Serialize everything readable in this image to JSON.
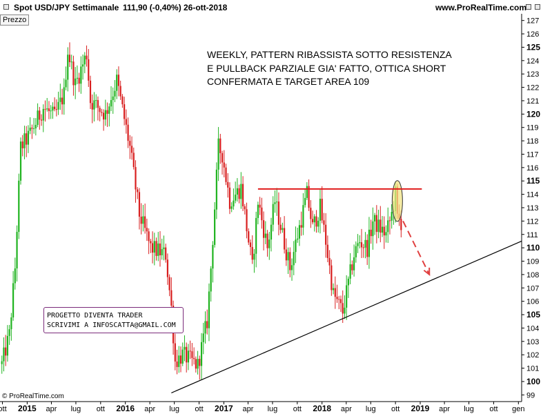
{
  "header": {
    "symbol": "Spot USD/JPY",
    "interval": "Settimanale",
    "price": "111,90 (-0,40%)",
    "date": "26-ott-2018",
    "site": "www.ProRealTime.com"
  },
  "panel_label": "Prezzo",
  "annotation": [
    "WEEKLY, PATTERN RIBASSISTA SOTTO RESISTENZA",
    "E PULLBACK PARZIALE GIA' FATTO, OTTICA SHORT",
    "CONFERMATA E TARGET AREA 109"
  ],
  "promo": [
    "PROGETTO DIVENTA TRADER",
    "SCRIVIMI  A INFOSCATTA@GMAIL.COM"
  ],
  "copyright": "© ProRealTime.com",
  "colors": {
    "up": "#1fb31f",
    "down": "#d81e1e",
    "resistance": "#e01b1b",
    "trendline": "#000000",
    "target_arrow": "#e04040",
    "highlight_fill": "#f2e486",
    "axis": "#000000"
  },
  "chart_data": {
    "type": "candlestick",
    "timeframe": "weekly",
    "y_range": [
      98.5,
      127.5
    ],
    "y_ticks": [
      99,
      100,
      101,
      102,
      103,
      104,
      105,
      106,
      107,
      108,
      109,
      110,
      111,
      112,
      113,
      114,
      115,
      116,
      117,
      118,
      119,
      120,
      121,
      122,
      123,
      124,
      125,
      126,
      127
    ],
    "y_bold_ticks": [
      100,
      105,
      110,
      115,
      120,
      125
    ],
    "x_range": [
      "2014-09-22",
      "2020-01-13"
    ],
    "x_ticks": [
      {
        "label": "ott",
        "date": "2014-10-01",
        "bold": false
      },
      {
        "label": "2015",
        "date": "2015-01-01",
        "bold": true
      },
      {
        "label": "apr",
        "date": "2015-04-01",
        "bold": false
      },
      {
        "label": "lug",
        "date": "2015-07-01",
        "bold": false
      },
      {
        "label": "ott",
        "date": "2015-10-01",
        "bold": false
      },
      {
        "label": "2016",
        "date": "2016-01-01",
        "bold": true
      },
      {
        "label": "apr",
        "date": "2016-04-01",
        "bold": false
      },
      {
        "label": "lug",
        "date": "2016-07-01",
        "bold": false
      },
      {
        "label": "ott",
        "date": "2016-10-01",
        "bold": false
      },
      {
        "label": "2017",
        "date": "2017-01-01",
        "bold": true
      },
      {
        "label": "apr",
        "date": "2017-04-01",
        "bold": false
      },
      {
        "label": "lug",
        "date": "2017-07-01",
        "bold": false
      },
      {
        "label": "ott",
        "date": "2017-10-01",
        "bold": false
      },
      {
        "label": "2018",
        "date": "2018-01-01",
        "bold": true
      },
      {
        "label": "apr",
        "date": "2018-04-01",
        "bold": false
      },
      {
        "label": "lug",
        "date": "2018-07-01",
        "bold": false
      },
      {
        "label": "ott",
        "date": "2018-10-01",
        "bold": false
      },
      {
        "label": "2019",
        "date": "2019-01-01",
        "bold": true
      },
      {
        "label": "apr",
        "date": "2019-04-01",
        "bold": false
      },
      {
        "label": "lug",
        "date": "2019-07-01",
        "bold": false
      },
      {
        "label": "ott",
        "date": "2019-10-01",
        "bold": false
      },
      {
        "label": "gen",
        "date": "2020-01-01",
        "bold": false
      }
    ],
    "close_path": [
      [
        "2014-09-29",
        101.3
      ],
      [
        "2014-10-27",
        103.5
      ],
      [
        "2014-11-17",
        108.5
      ],
      [
        "2014-12-08",
        117.5
      ],
      [
        "2015-01-12",
        118.5
      ],
      [
        "2015-03-02",
        120.5
      ],
      [
        "2015-04-13",
        119.8
      ],
      [
        "2015-05-18",
        121.5
      ],
      [
        "2015-06-01",
        124.8
      ],
      [
        "2015-06-29",
        122.2
      ],
      [
        "2015-08-10",
        124.5
      ],
      [
        "2015-08-24",
        121.0
      ],
      [
        "2015-10-19",
        120.0
      ],
      [
        "2015-11-30",
        122.5
      ],
      [
        "2016-01-18",
        117.5
      ],
      [
        "2016-02-22",
        112.5
      ],
      [
        "2016-04-04",
        110.0
      ],
      [
        "2016-05-30",
        109.5
      ],
      [
        "2016-06-20",
        105.5
      ],
      [
        "2016-07-04",
        101.5
      ],
      [
        "2016-08-01",
        102.0
      ],
      [
        "2016-09-26",
        101.2
      ],
      [
        "2016-10-31",
        104.5
      ],
      [
        "2016-11-14",
        108.5
      ],
      [
        "2016-12-12",
        117.5
      ],
      [
        "2016-12-26",
        117.0
      ],
      [
        "2017-01-23",
        113.5
      ],
      [
        "2017-03-06",
        114.5
      ],
      [
        "2017-04-17",
        108.5
      ],
      [
        "2017-05-08",
        113.5
      ],
      [
        "2017-06-12",
        110.0
      ],
      [
        "2017-07-10",
        113.5
      ],
      [
        "2017-09-04",
        108.5
      ],
      [
        "2017-11-06",
        114.0
      ],
      [
        "2017-11-27",
        111.5
      ],
      [
        "2017-12-25",
        113.0
      ],
      [
        "2018-01-15",
        110.5
      ],
      [
        "2018-02-12",
        106.5
      ],
      [
        "2018-03-19",
        105.2
      ],
      [
        "2018-04-30",
        109.5
      ],
      [
        "2018-05-21",
        110.5
      ],
      [
        "2018-06-18",
        110.0
      ],
      [
        "2018-07-09",
        112.0
      ],
      [
        "2018-08-27",
        111.0
      ],
      [
        "2018-09-17",
        112.5
      ],
      [
        "2018-10-01",
        114.0
      ],
      [
        "2018-10-08",
        112.2
      ],
      [
        "2018-10-22",
        111.9
      ]
    ],
    "annotations": {
      "resistance_line": {
        "y": 114.4,
        "x_from": "2017-05-08",
        "x_to": "2019-01-07"
      },
      "support_trendline": {
        "from": {
          "x": "2016-06-20",
          "y": 99.15
        },
        "to": {
          "x": "2020-01-13",
          "y": 110.5
        }
      },
      "highlight_ellipse": {
        "x": "2018-10-08",
        "y": 113.5,
        "y_span": [
          112.0,
          115.05
        ]
      },
      "target_arrow": {
        "from": {
          "x": "2018-10-29",
          "y": 112.0
        },
        "to": {
          "x": "2019-02-04",
          "y": 108.0
        },
        "target": 109
      }
    }
  }
}
